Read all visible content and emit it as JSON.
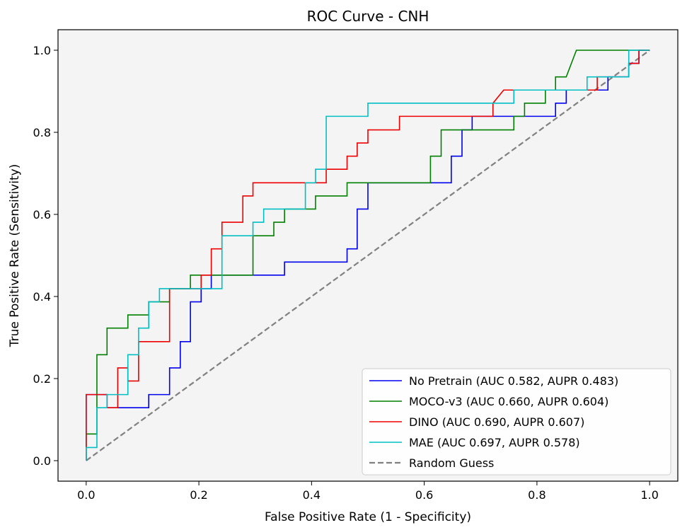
{
  "chart_data": {
    "type": "line",
    "title": "ROC Curve - CNH",
    "xlabel": "False Positive Rate (1 - Specificity)",
    "ylabel": "True Positive Rate (Sensitivity)",
    "xlim": [
      -0.05,
      1.05
    ],
    "ylim": [
      -0.05,
      1.05
    ],
    "xticks": [
      0.0,
      0.2,
      0.4,
      0.6,
      0.8,
      1.0
    ],
    "yticks": [
      0.0,
      0.2,
      0.4,
      0.6,
      0.8,
      1.0
    ],
    "xtick_labels": [
      "0.0",
      "0.2",
      "0.4",
      "0.6",
      "0.8",
      "1.0"
    ],
    "ytick_labels": [
      "0.0",
      "0.2",
      "0.4",
      "0.6",
      "0.8",
      "1.0"
    ],
    "background": "#f4f4f4",
    "grid": false,
    "legend_position": "bottom-right",
    "series": [
      {
        "name": "No Pretrain (AUC 0.582, AUPR 0.483)",
        "color": "#0000ee",
        "points": [
          [
            0,
            0
          ],
          [
            0,
            0.161
          ],
          [
            0.037,
            0.161
          ],
          [
            0.037,
            0.129
          ],
          [
            0.111,
            0.129
          ],
          [
            0.111,
            0.161
          ],
          [
            0.148,
            0.161
          ],
          [
            0.148,
            0.226
          ],
          [
            0.167,
            0.226
          ],
          [
            0.167,
            0.29
          ],
          [
            0.185,
            0.29
          ],
          [
            0.185,
            0.387
          ],
          [
            0.204,
            0.387
          ],
          [
            0.204,
            0.419
          ],
          [
            0.222,
            0.419
          ],
          [
            0.222,
            0.452
          ],
          [
            0.352,
            0.452
          ],
          [
            0.352,
            0.484
          ],
          [
            0.463,
            0.484
          ],
          [
            0.463,
            0.516
          ],
          [
            0.481,
            0.516
          ],
          [
            0.481,
            0.613
          ],
          [
            0.5,
            0.613
          ],
          [
            0.5,
            0.677
          ],
          [
            0.648,
            0.677
          ],
          [
            0.648,
            0.742
          ],
          [
            0.667,
            0.742
          ],
          [
            0.667,
            0.806
          ],
          [
            0.685,
            0.806
          ],
          [
            0.685,
            0.839
          ],
          [
            0.833,
            0.839
          ],
          [
            0.833,
            0.871
          ],
          [
            0.852,
            0.871
          ],
          [
            0.852,
            0.903
          ],
          [
            0.926,
            0.903
          ],
          [
            0.926,
            0.935
          ],
          [
            0.963,
            0.935
          ],
          [
            0.963,
            0.968
          ],
          [
            0.981,
            0.968
          ],
          [
            0.981,
            1.0
          ],
          [
            1.0,
            1.0
          ]
        ]
      },
      {
        "name": "MOCO-v3 (AUC 0.660, AUPR 0.604)",
        "color": "#008000",
        "points": [
          [
            0,
            0
          ],
          [
            0,
            0.065
          ],
          [
            0.019,
            0.065
          ],
          [
            0.019,
            0.258
          ],
          [
            0.037,
            0.258
          ],
          [
            0.037,
            0.323
          ],
          [
            0.074,
            0.323
          ],
          [
            0.074,
            0.355
          ],
          [
            0.111,
            0.355
          ],
          [
            0.111,
            0.387
          ],
          [
            0.148,
            0.387
          ],
          [
            0.148,
            0.419
          ],
          [
            0.185,
            0.419
          ],
          [
            0.185,
            0.452
          ],
          [
            0.296,
            0.452
          ],
          [
            0.296,
            0.548
          ],
          [
            0.333,
            0.548
          ],
          [
            0.333,
            0.581
          ],
          [
            0.352,
            0.581
          ],
          [
            0.352,
            0.613
          ],
          [
            0.407,
            0.613
          ],
          [
            0.407,
            0.645
          ],
          [
            0.463,
            0.645
          ],
          [
            0.463,
            0.677
          ],
          [
            0.611,
            0.677
          ],
          [
            0.611,
            0.742
          ],
          [
            0.63,
            0.742
          ],
          [
            0.63,
            0.806
          ],
          [
            0.759,
            0.806
          ],
          [
            0.759,
            0.839
          ],
          [
            0.778,
            0.839
          ],
          [
            0.778,
            0.871
          ],
          [
            0.815,
            0.871
          ],
          [
            0.815,
            0.903
          ],
          [
            0.833,
            0.903
          ],
          [
            0.833,
            0.935
          ],
          [
            0.852,
            0.935
          ],
          [
            0.87,
            1.0
          ],
          [
            1.0,
            1.0
          ]
        ]
      },
      {
        "name": "DINO (AUC 0.690, AUPR 0.607)",
        "color": "#ee0000",
        "points": [
          [
            0,
            0
          ],
          [
            0,
            0.161
          ],
          [
            0.037,
            0.161
          ],
          [
            0.037,
            0.129
          ],
          [
            0.056,
            0.129
          ],
          [
            0.056,
            0.226
          ],
          [
            0.074,
            0.226
          ],
          [
            0.074,
            0.194
          ],
          [
            0.093,
            0.194
          ],
          [
            0.093,
            0.29
          ],
          [
            0.148,
            0.29
          ],
          [
            0.148,
            0.419
          ],
          [
            0.204,
            0.419
          ],
          [
            0.204,
            0.452
          ],
          [
            0.222,
            0.452
          ],
          [
            0.222,
            0.516
          ],
          [
            0.241,
            0.516
          ],
          [
            0.241,
            0.581
          ],
          [
            0.278,
            0.581
          ],
          [
            0.278,
            0.645
          ],
          [
            0.296,
            0.645
          ],
          [
            0.296,
            0.677
          ],
          [
            0.426,
            0.677
          ],
          [
            0.426,
            0.71
          ],
          [
            0.463,
            0.71
          ],
          [
            0.463,
            0.742
          ],
          [
            0.481,
            0.742
          ],
          [
            0.481,
            0.774
          ],
          [
            0.5,
            0.774
          ],
          [
            0.5,
            0.806
          ],
          [
            0.556,
            0.806
          ],
          [
            0.556,
            0.839
          ],
          [
            0.722,
            0.839
          ],
          [
            0.722,
            0.871
          ],
          [
            0.741,
            0.903
          ],
          [
            0.907,
            0.903
          ],
          [
            0.907,
            0.935
          ],
          [
            0.963,
            0.935
          ],
          [
            0.963,
            0.968
          ],
          [
            0.981,
            0.968
          ],
          [
            0.981,
            1.0
          ],
          [
            1.0,
            1.0
          ]
        ]
      },
      {
        "name": "MAE (AUC 0.697, AUPR 0.578)",
        "color": "#00bfc4",
        "points": [
          [
            0,
            0
          ],
          [
            0,
            0.032
          ],
          [
            0.019,
            0.032
          ],
          [
            0.019,
            0.129
          ],
          [
            0.037,
            0.129
          ],
          [
            0.037,
            0.161
          ],
          [
            0.056,
            0.161
          ],
          [
            0.074,
            0.161
          ],
          [
            0.074,
            0.258
          ],
          [
            0.093,
            0.258
          ],
          [
            0.093,
            0.323
          ],
          [
            0.111,
            0.323
          ],
          [
            0.111,
            0.387
          ],
          [
            0.13,
            0.387
          ],
          [
            0.13,
            0.419
          ],
          [
            0.241,
            0.419
          ],
          [
            0.241,
            0.548
          ],
          [
            0.296,
            0.548
          ],
          [
            0.296,
            0.581
          ],
          [
            0.315,
            0.581
          ],
          [
            0.315,
            0.613
          ],
          [
            0.389,
            0.613
          ],
          [
            0.389,
            0.677
          ],
          [
            0.407,
            0.677
          ],
          [
            0.407,
            0.71
          ],
          [
            0.426,
            0.71
          ],
          [
            0.426,
            0.839
          ],
          [
            0.5,
            0.839
          ],
          [
            0.5,
            0.871
          ],
          [
            0.759,
            0.871
          ],
          [
            0.759,
            0.903
          ],
          [
            0.889,
            0.903
          ],
          [
            0.889,
            0.935
          ],
          [
            0.963,
            0.935
          ],
          [
            0.963,
            1.0
          ],
          [
            1.0,
            1.0
          ]
        ]
      },
      {
        "name": "Random Guess",
        "color": "#808080",
        "dashed": true,
        "points": [
          [
            0,
            0
          ],
          [
            1,
            1
          ]
        ]
      }
    ]
  }
}
